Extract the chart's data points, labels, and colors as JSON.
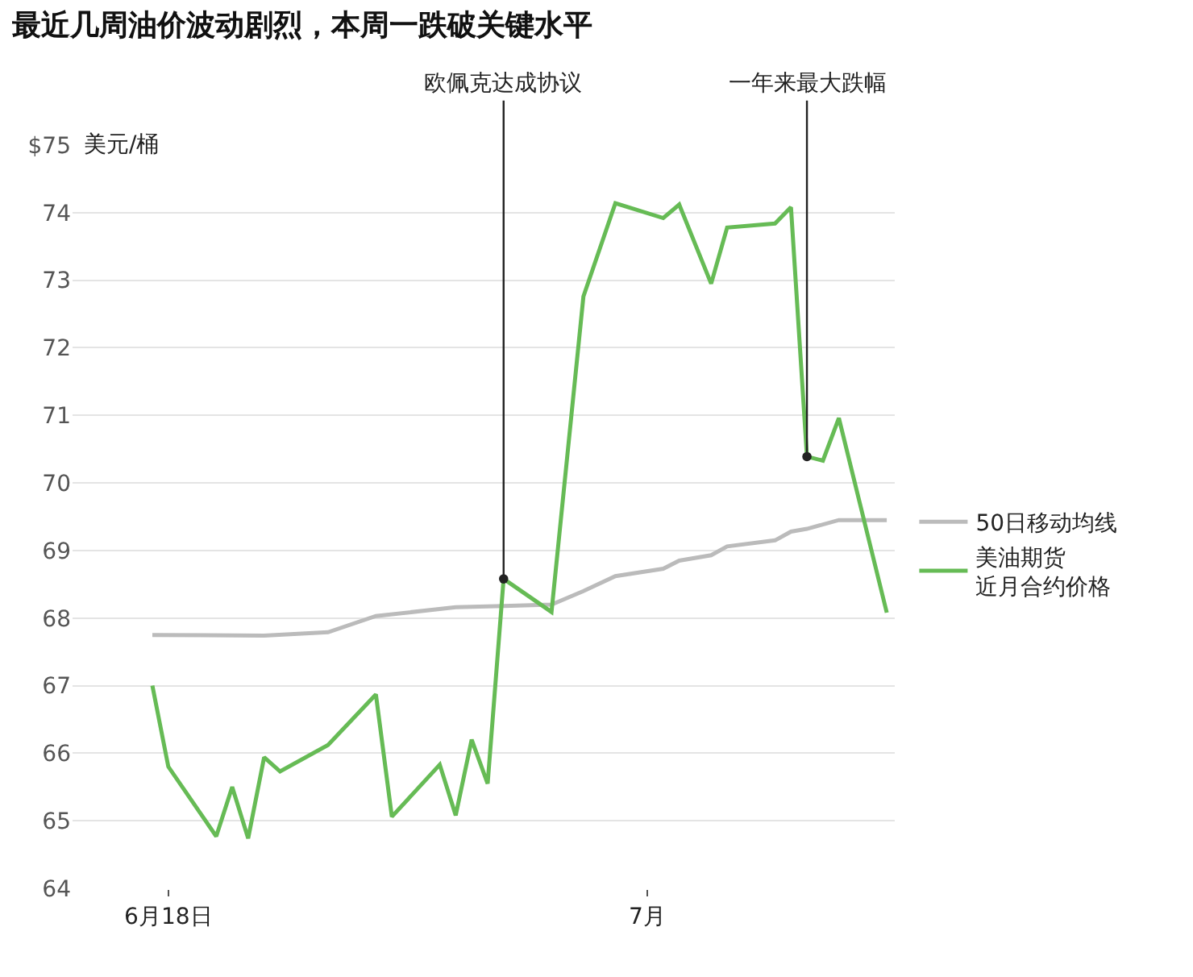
{
  "chart_data": {
    "type": "line",
    "title": "最近几周油价波动剧烈，本周一跌破关键水平",
    "ylabel": "美元/桶",
    "categories": [
      null,
      "6月18日",
      null,
      null,
      null,
      null,
      null,
      null,
      null,
      null,
      null,
      null,
      null,
      null,
      null,
      null,
      null,
      null,
      null,
      null,
      null,
      null,
      null,
      null,
      null,
      null,
      null,
      null,
      null,
      null,
      null,
      "7月",
      null,
      null,
      null,
      null,
      null,
      null,
      null,
      null,
      null,
      null,
      null,
      null,
      null,
      null,
      null
    ],
    "ylim": [
      64,
      75
    ],
    "yticks": [
      64,
      65,
      66,
      67,
      68,
      69,
      70,
      71,
      72,
      73,
      74,
      {
        "value": 75,
        "label": "$75"
      }
    ],
    "grid": "y",
    "legend": "right",
    "marker": "none",
    "line_style": "solid",
    "series": [
      {
        "name": "50日移动均线",
        "color": "#bbbbbb",
        "values": [
          67.75,
          null,
          null,
          null,
          null,
          null,
          null,
          67.74,
          null,
          null,
          null,
          67.79,
          null,
          null,
          68.03,
          null,
          null,
          null,
          null,
          68.16,
          null,
          null,
          68.18,
          null,
          null,
          68.2,
          null,
          68.4,
          null,
          68.62,
          null,
          null,
          68.73,
          68.85,
          null,
          68.93,
          69.06,
          null,
          null,
          69.15,
          69.28,
          69.32,
          null,
          69.45,
          null,
          null,
          69.45
        ]
      },
      {
        "name": "美油期货近月合约价格",
        "color": "#66bb55",
        "values": [
          67.0,
          65.8,
          null,
          null,
          64.77,
          65.5,
          64.74,
          65.94,
          65.73,
          null,
          null,
          66.12,
          null,
          null,
          66.87,
          65.06,
          null,
          null,
          65.83,
          65.08,
          66.2,
          65.55,
          68.58,
          null,
          null,
          68.09,
          null,
          72.76,
          null,
          74.14,
          null,
          null,
          73.92,
          74.12,
          null,
          72.95,
          73.78,
          null,
          null,
          73.84,
          74.08,
          70.39,
          70.33,
          70.96,
          null,
          null,
          68.08
        ]
      }
    ],
    "annotations": [
      {
        "text": "欧佩克达成协议",
        "y": 68.58
      },
      {
        "text": "一年来最大跌幅",
        "y": 70.39
      }
    ]
  }
}
